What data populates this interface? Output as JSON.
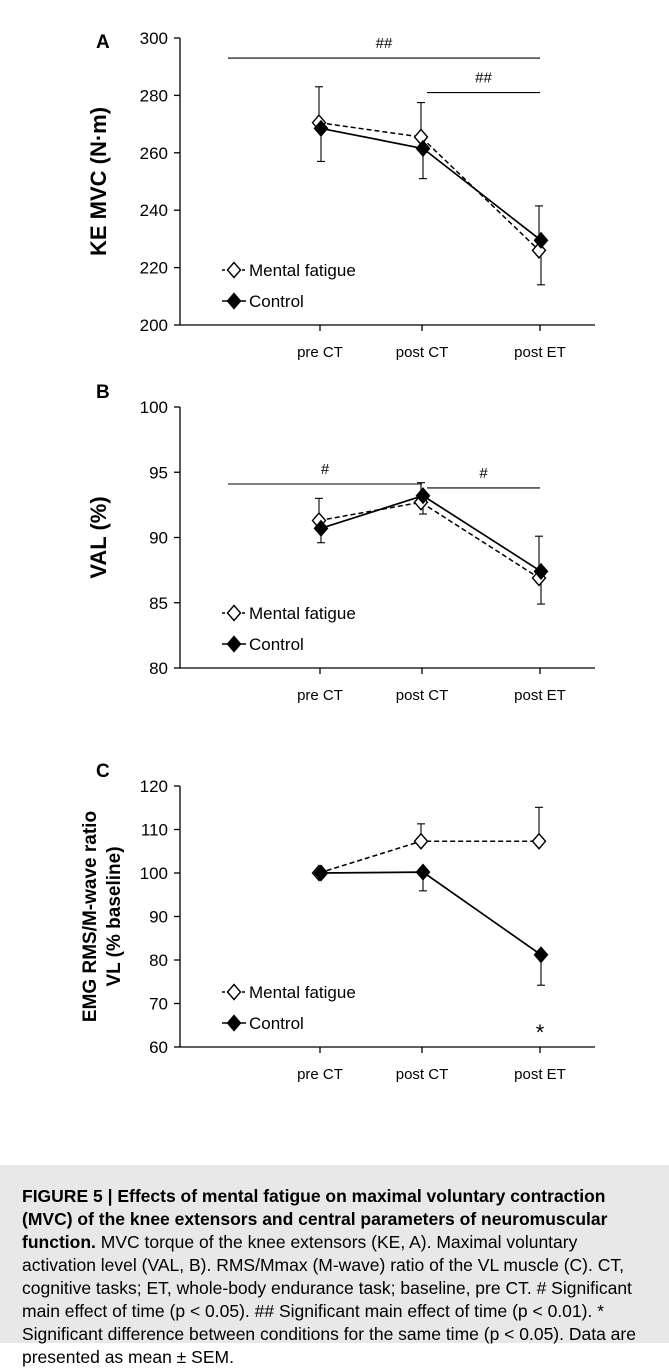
{
  "chart_data": [
    {
      "type": "line",
      "panel_label": "A",
      "ylabel": "KE MVC (N·m)",
      "categories": [
        "pre CT",
        "post CT",
        "post ET"
      ],
      "ylim": [
        200,
        300
      ],
      "yticks": [
        200,
        220,
        240,
        260,
        280,
        300
      ],
      "series": [
        {
          "name": "Mental fatigue",
          "values": [
            270.5,
            265.5,
            226
          ],
          "errors": [
            12.5,
            12,
            15.5
          ],
          "marker": "open-diamond",
          "line": "dashed"
        },
        {
          "name": "Control",
          "values": [
            268.5,
            261.5,
            229.5
          ],
          "errors": [
            11.5,
            10.5,
            15.5
          ],
          "marker": "filled-diamond",
          "line": "solid"
        }
      ],
      "annotations": [
        {
          "label": "##",
          "from": 0,
          "to": 2,
          "y": 293
        },
        {
          "label": "##",
          "from": 1,
          "to": 2,
          "y": 281
        }
      ],
      "legend_position": "bottom-left"
    },
    {
      "type": "line",
      "panel_label": "B",
      "ylabel": "VAL (%)",
      "categories": [
        "pre CT",
        "post CT",
        "post ET"
      ],
      "ylim": [
        80,
        100
      ],
      "yticks": [
        80,
        85,
        90,
        95,
        100
      ],
      "series": [
        {
          "name": "Mental fatigue",
          "values": [
            91.3,
            92.7,
            86.9
          ],
          "errors": [
            1.7,
            1.5,
            3.2
          ],
          "marker": "open-diamond",
          "line": "dashed"
        },
        {
          "name": "Control",
          "values": [
            90.7,
            93.2,
            87.4
          ],
          "errors": [
            1.1,
            1.4,
            2.5
          ],
          "marker": "filled-diamond",
          "line": "solid"
        }
      ],
      "annotations": [
        {
          "label": "#",
          "from": 0,
          "to": 1,
          "y": 94.1
        },
        {
          "label": "#",
          "from": 1,
          "to": 2,
          "y": 93.8
        }
      ],
      "legend_position": "bottom-left"
    },
    {
      "type": "line",
      "panel_label": "C",
      "ylabel_line1": "EMG RMS/M-wave ratio",
      "ylabel_line2": "VL (% baseline)",
      "categories": [
        "pre CT",
        "post CT",
        "post ET"
      ],
      "ylim": [
        60,
        120
      ],
      "yticks": [
        60,
        70,
        80,
        90,
        100,
        110,
        120
      ],
      "series": [
        {
          "name": "Mental fatigue",
          "values": [
            100,
            107.3,
            107.3
          ],
          "errors": [
            0,
            4,
            7.8
          ],
          "marker": "open-diamond",
          "line": "dashed"
        },
        {
          "name": "Control",
          "values": [
            100,
            100.2,
            81.2
          ],
          "errors": [
            0,
            4.3,
            7
          ],
          "marker": "filled-diamond",
          "line": "solid"
        }
      ],
      "annotations": [
        {
          "label": "*",
          "category": 2,
          "y": 63.5
        }
      ],
      "legend_position": "bottom-left"
    }
  ],
  "caption": {
    "title": "FIGURE 5 | Effects of mental fatigue on maximal voluntary contraction (MVC) of the knee extensors and central parameters of neuromuscular function.",
    "body": "MVC torque of the knee extensors (KE, A). Maximal voluntary activation level (VAL, B). RMS/Mmax (M-wave) ratio of the VL muscle (C). CT, cognitive tasks; ET, whole-body endurance task; baseline, pre CT. # Significant main effect of time (p < 0.05). ## Significant main effect of time (p < 0.01). * Significant difference between conditions for the same time (p < 0.05). Data are presented as mean ± SEM."
  }
}
